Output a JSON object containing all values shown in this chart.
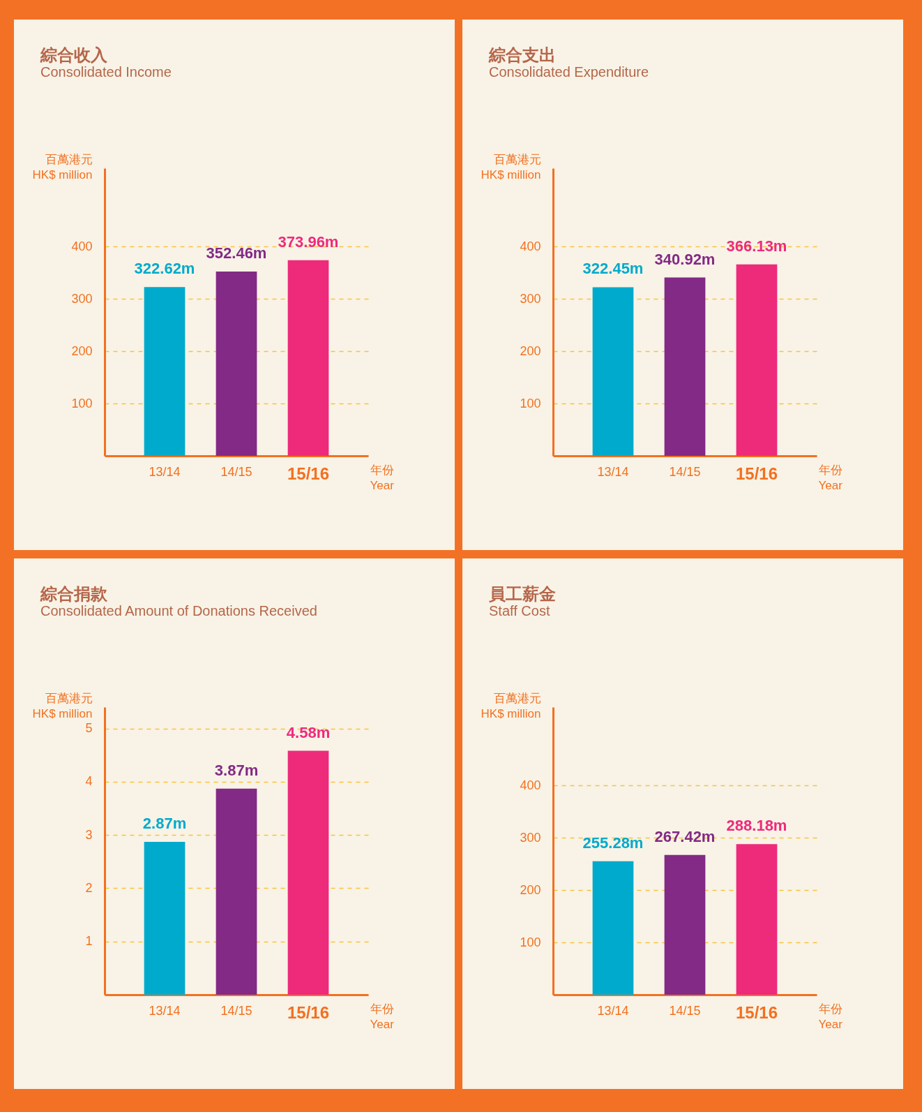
{
  "chart_data": [
    {
      "type": "bar",
      "title": "綜合收入",
      "subtitle": "Consolidated Income",
      "ylabel": "百萬港元\nHK$ million",
      "xlabel": "年份\nYear",
      "categories": [
        "13/14",
        "14/15",
        "15/16"
      ],
      "values": [
        322.62,
        352.46,
        373.96
      ],
      "value_labels": [
        "322.62m",
        "352.46m",
        "373.96m"
      ],
      "colors": [
        "#00aacc",
        "#822a85",
        "#ee2a7b"
      ],
      "ylim": [
        0,
        550
      ],
      "yticks": [
        100,
        200,
        300,
        400
      ],
      "grid": "y",
      "line_style": "dashed"
    },
    {
      "type": "bar",
      "title": "綜合支出",
      "subtitle": "Consolidated Expenditure",
      "ylabel": "百萬港元\nHK$ million",
      "xlabel": "年份\nYear",
      "categories": [
        "13/14",
        "14/15",
        "15/16"
      ],
      "values": [
        322.45,
        340.92,
        366.13
      ],
      "value_labels": [
        "322.45m",
        "340.92m",
        "366.13m"
      ],
      "colors": [
        "#00aacc",
        "#822a85",
        "#ee2a7b"
      ],
      "ylim": [
        0,
        550
      ],
      "yticks": [
        100,
        200,
        300,
        400
      ],
      "grid": "y",
      "line_style": "dashed"
    },
    {
      "type": "bar",
      "title": "綜合捐款",
      "subtitle": "Consolidated Amount of Donations Received",
      "ylabel": "百萬港元\nHK$ million",
      "xlabel": "年份\nYear",
      "categories": [
        "13/14",
        "14/15",
        "15/16"
      ],
      "values": [
        2.87,
        3.87,
        4.58
      ],
      "value_labels": [
        "2.87m",
        "3.87m",
        "4.58m"
      ],
      "colors": [
        "#00aacc",
        "#822a85",
        "#ee2a7b"
      ],
      "ylim": [
        0,
        5.4
      ],
      "yticks": [
        1,
        2,
        3,
        4,
        5
      ],
      "grid": "y",
      "line_style": "dashed"
    },
    {
      "type": "bar",
      "title": "員工薪金",
      "subtitle": "Staff Cost",
      "ylabel": "百萬港元\nHK$ million",
      "xlabel": "年份\nYear",
      "categories": [
        "13/14",
        "14/15",
        "15/16"
      ],
      "values": [
        255.28,
        267.42,
        288.18
      ],
      "value_labels": [
        "255.28m",
        "267.42m",
        "288.18m"
      ],
      "colors": [
        "#00aacc",
        "#822a85",
        "#ee2a7b"
      ],
      "ylim": [
        0,
        550
      ],
      "yticks": [
        100,
        200,
        300,
        400
      ],
      "grid": "y",
      "line_style": "dashed"
    }
  ]
}
